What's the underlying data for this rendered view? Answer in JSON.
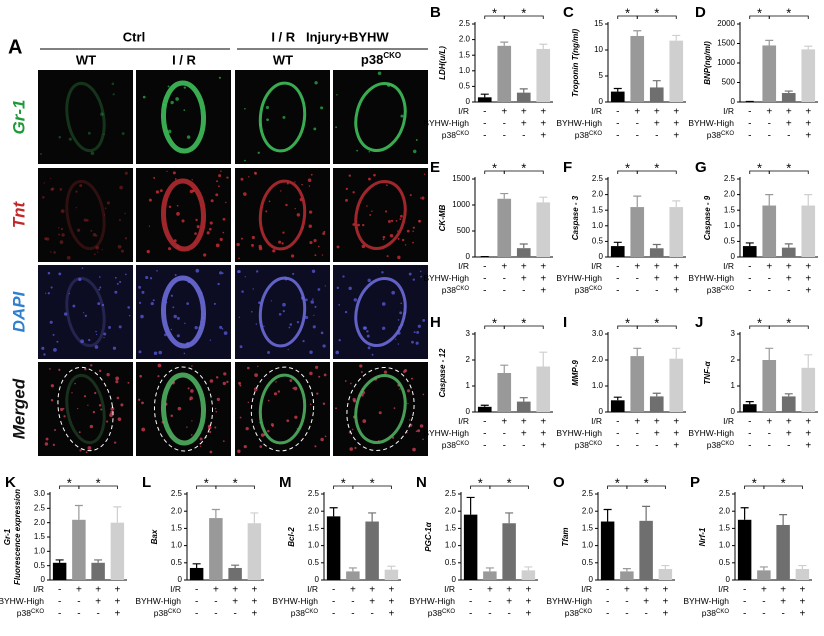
{
  "panel_a": {
    "label": "A",
    "groups": [
      "Ctrl",
      "I / R   Injury+BYHW"
    ],
    "columns": [
      {
        "text": "WT"
      },
      {
        "text": "I / R"
      },
      {
        "text": "WT"
      },
      {
        "text": "p38",
        "sup": "CKO"
      }
    ],
    "rows": [
      {
        "text": "Gr-1",
        "color": "#1f9a3a"
      },
      {
        "text": "Tnt",
        "color": "#c0282a"
      },
      {
        "text": "DAPI",
        "color": "#2f7fd0"
      },
      {
        "text": "Merged",
        "color": "#111111"
      }
    ]
  },
  "conditions": [
    {
      "name": "I/R",
      "signs": [
        "-",
        "+",
        "+",
        "+"
      ]
    },
    {
      "name": "BYHW-High",
      "signs": [
        "-",
        "-",
        "+",
        "+"
      ]
    },
    {
      "name": "p38",
      "sup": "CKO",
      "signs": [
        "-",
        "-",
        "-",
        "+"
      ]
    }
  ],
  "chart_data": [
    {
      "type": "bar",
      "panel": "B",
      "ylabel": [
        "LDH(u/L)"
      ],
      "values": [
        0.15,
        1.8,
        0.3,
        1.7
      ],
      "errors": [
        0.1,
        0.12,
        0.12,
        0.15
      ],
      "colors": [
        "#000000",
        "#999999",
        "#6f6f6f",
        "#cfcfcf"
      ],
      "ylim": [
        0,
        2.5
      ],
      "yticks": [
        0,
        0.5,
        {
          "value": 1,
          "label": "1.0"
        },
        1.5,
        {
          "value": 2,
          "label": "2.0"
        },
        2.5
      ],
      "significance": [
        {
          "from": 0,
          "to": 1,
          "label": "*"
        },
        {
          "from": 1,
          "to": 3,
          "label": "*"
        }
      ]
    },
    {
      "type": "bar",
      "panel": "C",
      "ylabel": [
        "Troponin T(ng/ml)"
      ],
      "values": [
        2.0,
        12.7,
        2.8,
        11.8
      ],
      "errors": [
        0.6,
        1.0,
        1.3,
        1.0
      ],
      "colors": [
        "#000000",
        "#999999",
        "#6f6f6f",
        "#cfcfcf"
      ],
      "ylim": [
        0,
        15
      ],
      "yticks": [
        0,
        5,
        10,
        15
      ],
      "significance": [
        {
          "from": 0,
          "to": 1,
          "label": "*"
        },
        {
          "from": 1,
          "to": 3,
          "label": "*"
        }
      ]
    },
    {
      "type": "bar",
      "panel": "D",
      "ylabel": [
        "BNP(ng/ml)"
      ],
      "values": [
        10,
        1450,
        230,
        1350
      ],
      "errors": [
        5,
        130,
        50,
        80
      ],
      "colors": [
        "#000000",
        "#999999",
        "#6f6f6f",
        "#cfcfcf"
      ],
      "ylim": [
        0,
        2000
      ],
      "yticks": [
        0,
        500,
        1000,
        1500,
        2000
      ],
      "significance": [
        {
          "from": 0,
          "to": 1,
          "label": "*"
        },
        {
          "from": 1,
          "to": 3,
          "label": "*"
        }
      ]
    },
    {
      "type": "bar",
      "panel": "E",
      "ylabel": [
        "CK-MB"
      ],
      "values": [
        5,
        1120,
        170,
        1050
      ],
      "errors": [
        3,
        100,
        80,
        100
      ],
      "colors": [
        "#000000",
        "#999999",
        "#6f6f6f",
        "#cfcfcf"
      ],
      "ylim": [
        0,
        1500
      ],
      "yticks": [
        0,
        500,
        1000,
        1500
      ],
      "significance": [
        {
          "from": 0,
          "to": 1,
          "label": "*"
        },
        {
          "from": 1,
          "to": 3,
          "label": "*"
        }
      ]
    },
    {
      "type": "bar",
      "panel": "F",
      "ylabel": [
        "Caspase - 3"
      ],
      "values": [
        0.35,
        1.6,
        0.28,
        1.6
      ],
      "errors": [
        0.12,
        0.35,
        0.12,
        0.2
      ],
      "colors": [
        "#000000",
        "#999999",
        "#6f6f6f",
        "#cfcfcf"
      ],
      "ylim": [
        0,
        2.5
      ],
      "yticks": [
        0,
        0.5,
        {
          "value": 1,
          "label": "1.0"
        },
        1.5,
        {
          "value": 2,
          "label": "2.0"
        },
        2.5
      ],
      "significance": [
        {
          "from": 0,
          "to": 1,
          "label": "*"
        },
        {
          "from": 1,
          "to": 3,
          "label": "*"
        }
      ]
    },
    {
      "type": "bar",
      "panel": "G",
      "ylabel": [
        "Caspase - 9"
      ],
      "values": [
        0.35,
        1.65,
        0.3,
        1.65
      ],
      "errors": [
        0.1,
        0.35,
        0.12,
        0.35
      ],
      "colors": [
        "#000000",
        "#999999",
        "#6f6f6f",
        "#cfcfcf"
      ],
      "ylim": [
        0,
        2.5
      ],
      "yticks": [
        0,
        0.5,
        {
          "value": 1,
          "label": "1.0"
        },
        1.5,
        {
          "value": 2,
          "label": "2.0"
        },
        2.5
      ],
      "significance": [
        {
          "from": 0,
          "to": 1,
          "label": "*"
        },
        {
          "from": 1,
          "to": 3,
          "label": "*"
        }
      ]
    },
    {
      "type": "bar",
      "panel": "H",
      "ylabel": [
        "Caspase - 12"
      ],
      "values": [
        0.2,
        1.5,
        0.4,
        1.75
      ],
      "errors": [
        0.06,
        0.3,
        0.15,
        0.55
      ],
      "colors": [
        "#000000",
        "#999999",
        "#6f6f6f",
        "#cfcfcf"
      ],
      "ylim": [
        0,
        3
      ],
      "yticks": [
        0,
        1,
        2,
        3
      ],
      "significance": [
        {
          "from": 0,
          "to": 1,
          "label": "*"
        },
        {
          "from": 1,
          "to": 3,
          "label": "*"
        }
      ]
    },
    {
      "type": "bar",
      "panel": "I",
      "ylabel": [
        "MMP-9"
      ],
      "values": [
        0.45,
        2.15,
        0.6,
        2.05
      ],
      "errors": [
        0.12,
        0.3,
        0.12,
        0.4
      ],
      "colors": [
        "#000000",
        "#999999",
        "#6f6f6f",
        "#cfcfcf"
      ],
      "ylim": [
        0,
        3
      ],
      "yticks": [
        0,
        {
          "value": 1,
          "label": "1.0"
        },
        {
          "value": 2,
          "label": "2.0"
        },
        {
          "value": 3,
          "label": "3.0"
        }
      ],
      "significance": [
        {
          "from": 0,
          "to": 1,
          "label": "*"
        },
        {
          "from": 1,
          "to": 3,
          "label": "*"
        }
      ]
    },
    {
      "type": "bar",
      "panel": "J",
      "ylabel": [
        "TNF-α"
      ],
      "values": [
        0.3,
        2.0,
        0.6,
        1.7
      ],
      "errors": [
        0.1,
        0.45,
        0.1,
        0.5
      ],
      "colors": [
        "#000000",
        "#999999",
        "#6f6f6f",
        "#cfcfcf"
      ],
      "ylim": [
        0,
        3
      ],
      "yticks": [
        0,
        1,
        2,
        3
      ],
      "significance": [
        {
          "from": 0,
          "to": 1,
          "label": "*"
        },
        {
          "from": 1,
          "to": 3,
          "label": "*"
        }
      ]
    },
    {
      "type": "bar",
      "panel": "K",
      "ylabel": [
        "Gr-1",
        "Fluorescence expression"
      ],
      "values": [
        0.6,
        2.1,
        0.6,
        2.0
      ],
      "errors": [
        0.1,
        0.5,
        0.1,
        0.55
      ],
      "colors": [
        "#000000",
        "#999999",
        "#6f6f6f",
        "#cfcfcf"
      ],
      "ylim": [
        0,
        3
      ],
      "yticks": [
        0,
        0.5,
        {
          "value": 1,
          "label": "1.0"
        },
        1.5,
        {
          "value": 2,
          "label": "2.0"
        },
        2.5,
        {
          "value": 3,
          "label": "3.0"
        }
      ],
      "significance": [
        {
          "from": 0,
          "to": 1,
          "label": "*"
        },
        {
          "from": 1,
          "to": 3,
          "label": "*"
        }
      ]
    },
    {
      "type": "bar",
      "panel": "L",
      "ylabel": [
        "Bax"
      ],
      "values": [
        0.35,
        1.8,
        0.35,
        1.65
      ],
      "errors": [
        0.12,
        0.25,
        0.08,
        0.3
      ],
      "colors": [
        "#000000",
        "#999999",
        "#6f6f6f",
        "#cfcfcf"
      ],
      "ylim": [
        0,
        2.5
      ],
      "yticks": [
        0,
        0.5,
        {
          "value": 1,
          "label": "1.0"
        },
        1.5,
        {
          "value": 2,
          "label": "2.0"
        },
        2.5
      ],
      "significance": [
        {
          "from": 0,
          "to": 1,
          "label": "*"
        },
        {
          "from": 1,
          "to": 3,
          "label": "*"
        }
      ]
    },
    {
      "type": "bar",
      "panel": "M",
      "ylabel": [
        "Bcl-2"
      ],
      "values": [
        1.85,
        0.25,
        1.7,
        0.3
      ],
      "errors": [
        0.25,
        0.1,
        0.25,
        0.1
      ],
      "colors": [
        "#000000",
        "#999999",
        "#6f6f6f",
        "#cfcfcf"
      ],
      "ylim": [
        0,
        2.5
      ],
      "yticks": [
        0,
        0.5,
        {
          "value": 1,
          "label": "1.0"
        },
        1.5,
        {
          "value": 2,
          "label": "2.0"
        },
        2.5
      ],
      "significance": [
        {
          "from": 0,
          "to": 1,
          "label": "*"
        },
        {
          "from": 1,
          "to": 3,
          "label": "*"
        }
      ]
    },
    {
      "type": "bar",
      "panel": "N",
      "ylabel": [
        "PGC-1α"
      ],
      "values": [
        1.9,
        0.25,
        1.65,
        0.28
      ],
      "errors": [
        0.5,
        0.1,
        0.3,
        0.1
      ],
      "colors": [
        "#000000",
        "#999999",
        "#6f6f6f",
        "#cfcfcf"
      ],
      "ylim": [
        0,
        2.5
      ],
      "yticks": [
        0,
        0.5,
        {
          "value": 1,
          "label": "1.0"
        },
        1.5,
        {
          "value": 2,
          "label": "2.0"
        },
        2.5
      ],
      "significance": [
        {
          "from": 0,
          "to": 1,
          "label": "*"
        },
        {
          "from": 1,
          "to": 3,
          "label": "*"
        }
      ]
    },
    {
      "type": "bar",
      "panel": "O",
      "ylabel": [
        "Tfam"
      ],
      "values": [
        1.7,
        0.25,
        1.72,
        0.32
      ],
      "errors": [
        0.35,
        0.08,
        0.42,
        0.1
      ],
      "colors": [
        "#000000",
        "#999999",
        "#6f6f6f",
        "#cfcfcf"
      ],
      "ylim": [
        0,
        2.5
      ],
      "yticks": [
        0,
        0.5,
        {
          "value": 1,
          "label": "1.0"
        },
        1.5,
        {
          "value": 2,
          "label": "2.0"
        },
        2.5
      ],
      "significance": [
        {
          "from": 0,
          "to": 1,
          "label": "*"
        },
        {
          "from": 1,
          "to": 3,
          "label": "*"
        }
      ]
    },
    {
      "type": "bar",
      "panel": "P",
      "ylabel": [
        "Nrf-1"
      ],
      "values": [
        1.75,
        0.28,
        1.6,
        0.32
      ],
      "errors": [
        0.35,
        0.1,
        0.3,
        0.1
      ],
      "colors": [
        "#000000",
        "#999999",
        "#6f6f6f",
        "#cfcfcf"
      ],
      "ylim": [
        0,
        2.5
      ],
      "yticks": [
        0,
        0.5,
        {
          "value": 1,
          "label": "1.0"
        },
        1.5,
        {
          "value": 2,
          "label": "2.0"
        },
        2.5
      ],
      "significance": [
        {
          "from": 0,
          "to": 1,
          "label": "*"
        },
        {
          "from": 1,
          "to": 3,
          "label": "*"
        }
      ]
    }
  ]
}
